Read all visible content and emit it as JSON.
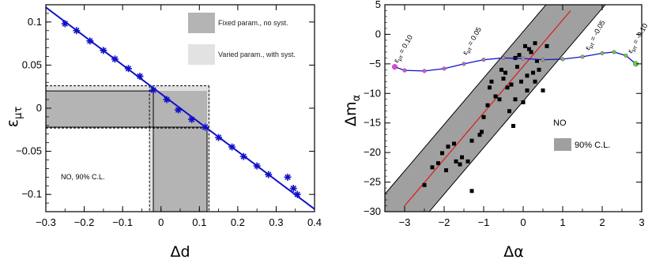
{
  "chart_data": [
    {
      "type": "scatter",
      "xlabel": "Δd",
      "ylabel": "ε_μτ",
      "xlim": [
        -0.3,
        0.4
      ],
      "ylim": [
        -0.12,
        0.12
      ],
      "xticks": [
        "−0.3",
        "−0.2",
        "−0.1",
        "0",
        "0.1",
        "0.2",
        "0.3",
        "0.4"
      ],
      "yticks": [
        "0.1",
        "0.05",
        "0",
        "−0.05",
        "−0.1"
      ],
      "line": {
        "x": [
          -0.3,
          0.4
        ],
        "y": [
          0.117,
          -0.117
        ],
        "color": "#1010c8"
      },
      "points": {
        "x": [
          -0.25,
          -0.22,
          -0.185,
          -0.15,
          -0.12,
          -0.085,
          -0.055,
          -0.02,
          0.015,
          0.045,
          0.08,
          0.115,
          0.15,
          0.185,
          0.215,
          0.25,
          0.28,
          0.33,
          0.345,
          0.355
        ],
        "y": [
          0.098,
          0.09,
          0.078,
          0.067,
          0.057,
          0.046,
          0.037,
          0.021,
          0.01,
          -0.002,
          -0.013,
          -0.022,
          -0.034,
          -0.045,
          -0.056,
          -0.067,
          -0.077,
          -0.08,
          -0.093,
          -0.1
        ]
      },
      "bands": [
        {
          "name": "Fixed param., no syst.",
          "color": "#b4b4b4",
          "x_range": [
            -0.02,
            0.12
          ],
          "y_range": [
            -0.022,
            0.02
          ]
        },
        {
          "name": "Varied param., with syst.",
          "color": "#e2e2e2",
          "x_range": [
            -0.03,
            0.125
          ],
          "y_range": [
            -0.023,
            0.026
          ]
        }
      ],
      "legend": [
        "Fixed param., no syst.",
        "Varied param., with syst."
      ],
      "annotation": "NO, 90% C.L."
    },
    {
      "type": "scatter",
      "xlabel": "Δα",
      "ylabel": "Δm_α",
      "xlim": [
        -3.5,
        3.0
      ],
      "ylim": [
        -30,
        5
      ],
      "xticks": [
        "−3",
        "−2",
        "−1",
        "0",
        "1",
        "2",
        "3"
      ],
      "yticks": [
        "5",
        "0",
        "−5",
        "−10",
        "−15",
        "−20",
        "−25",
        "−30"
      ],
      "band_label": "90% C.L.",
      "annotation": "NO",
      "center_line": {
        "x": [
          -3.0,
          1.2
        ],
        "y": [
          -29,
          4
        ],
        "color": "#e01818"
      },
      "points": {
        "x": [
          -2.5,
          -2.3,
          -2.15,
          -2.05,
          -1.95,
          -1.9,
          -1.75,
          -1.7,
          -1.6,
          -1.55,
          -1.4,
          -1.3,
          -1.3,
          -1.1,
          -1.05,
          -1.0,
          -0.9,
          -0.85,
          -0.8,
          -0.7,
          -0.6,
          -0.55,
          -0.5,
          -0.45,
          -0.4,
          -0.3,
          -0.25,
          -0.2,
          -0.15,
          -0.1,
          -0.05,
          0.0,
          0.05,
          0.1,
          0.15,
          0.2,
          0.25,
          0.3,
          0.35,
          0.4,
          0.5,
          0.6,
          -0.35,
          -0.2,
          0.1,
          0.3
        ],
        "y": [
          -25.5,
          -22.5,
          -21.8,
          -20.1,
          -23.0,
          -19.0,
          -18.5,
          -21.5,
          -22.0,
          -20.8,
          -21.5,
          -26.5,
          -18.0,
          -17.0,
          -16.5,
          -14.0,
          -12.0,
          -9.0,
          -8.0,
          -10.5,
          -11.0,
          -6.0,
          -7.5,
          -6.5,
          -9.0,
          -8.5,
          -15.5,
          -4.0,
          -5.5,
          -3.5,
          -8.0,
          -11.5,
          -2.0,
          -7.0,
          -2.5,
          -3.0,
          -6.5,
          -1.5,
          -4.5,
          -6.0,
          -9.5,
          -2.0,
          -13.0,
          -11.0,
          -9.5,
          -8.0
        ]
      },
      "curve": {
        "x": [
          -3.25,
          -3.0,
          -2.5,
          -2.0,
          -1.5,
          -1.0,
          -0.5,
          0.0,
          0.5,
          1.0,
          1.5,
          2.0,
          2.3,
          2.6,
          2.85
        ],
        "y": [
          -5.5,
          -6.1,
          -6.2,
          -5.8,
          -5.0,
          -4.3,
          -4.0,
          -4.1,
          -4.3,
          -4.2,
          -3.8,
          -3.2,
          -3.0,
          -3.6,
          -5.0
        ]
      },
      "curve_labels": [
        "ε_μτ = 0.10",
        "ε_μτ = 0.05",
        "ε_μτ = -0.05",
        "ε_μτ = -0.10"
      ]
    }
  ]
}
